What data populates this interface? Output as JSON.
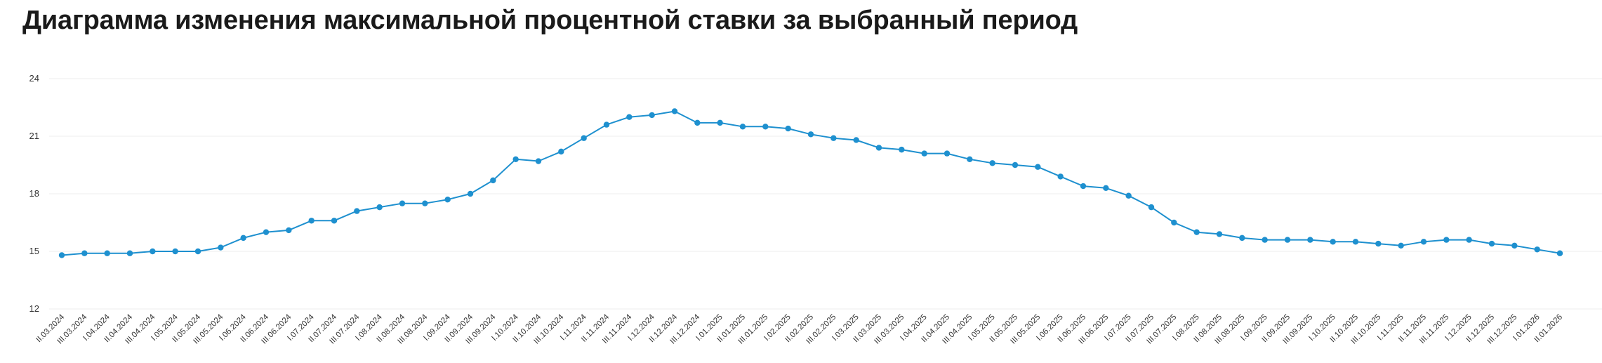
{
  "title": "Диаграмма изменения максимальной процентной ставки за выбранный период",
  "chart_data": {
    "type": "line",
    "title": "Диаграмма изменения максимальной процентной ставки за выбранный период",
    "xlabel": "",
    "ylabel": "",
    "ylim": [
      12,
      24
    ],
    "yticks": [
      "12",
      "15",
      "18",
      "21",
      "24"
    ],
    "grid": true,
    "color": "#1e90cf",
    "categories": [
      "II.03.2024",
      "III.03.2024",
      "I.04.2024",
      "II.04.2024",
      "III.04.2024",
      "I.05.2024",
      "II.05.2024",
      "III.05.2024",
      "I.06.2024",
      "II.06.2024",
      "III.06.2024",
      "I.07.2024",
      "II.07.2024",
      "III.07.2024",
      "I.08.2024",
      "II.08.2024",
      "III.08.2024",
      "I.09.2024",
      "II.09.2024",
      "III.09.2024",
      "I.10.2024",
      "II.10.2024",
      "III.10.2024",
      "I.11.2024",
      "II.11.2024",
      "III.11.2024",
      "I.12.2024",
      "II.12.2024",
      "III.12.2024",
      "I.01.2025",
      "II.01.2025",
      "III.01.2025",
      "I.02.2025",
      "II.02.2025",
      "III.02.2025",
      "I.03.2025",
      "II.03.2025",
      "III.03.2025",
      "I.04.2025",
      "II.04.2025",
      "III.04.2025",
      "I.05.2025",
      "II.05.2025",
      "III.05.2025",
      "I.06.2025",
      "II.06.2025",
      "III.06.2025",
      "I.07.2025",
      "II.07.2025",
      "III.07.2025",
      "I.08.2025",
      "II.08.2025",
      "III.08.2025",
      "I.09.2025",
      "II.09.2025",
      "III.09.2025",
      "I.10.2025",
      "II.10.2025",
      "III.10.2025",
      "I.11.2025",
      "II.11.2025",
      "III.11.2025",
      "I.12.2025",
      "II.12.2025",
      "III.12.2025",
      "I.01.2026",
      "II.01.2026"
    ],
    "series": [
      {
        "values": [
          14.8,
          14.9,
          14.9,
          14.9,
          15.0,
          15.0,
          15.0,
          15.2,
          15.7,
          16.0,
          16.1,
          16.6,
          16.6,
          17.1,
          17.3,
          17.5,
          17.5,
          17.7,
          18.0,
          18.7,
          19.8,
          19.7,
          20.2,
          20.9,
          21.6,
          22.0,
          22.1,
          22.3,
          21.7,
          21.7,
          21.5,
          21.5,
          21.4,
          21.1,
          20.9,
          20.8,
          20.4,
          20.3,
          20.1,
          20.1,
          19.8,
          19.6,
          19.5,
          19.4,
          18.9,
          18.4,
          18.3,
          17.9,
          17.3,
          16.5,
          16.0,
          15.9,
          15.7,
          15.6,
          15.6,
          15.6,
          15.5,
          15.5,
          15.4,
          15.3,
          15.5,
          15.6,
          15.6,
          15.4,
          15.3,
          15.1,
          14.9
        ]
      }
    ]
  }
}
